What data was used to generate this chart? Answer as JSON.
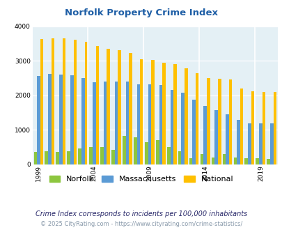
{
  "title": "Norfolk Property Crime Index",
  "years": [
    1999,
    2000,
    2001,
    2002,
    2003,
    2004,
    2005,
    2006,
    2007,
    2008,
    2009,
    2010,
    2011,
    2012,
    2013,
    2014,
    2015,
    2016,
    2017,
    2018,
    2019,
    2020
  ],
  "norfolk": [
    370,
    380,
    370,
    380,
    460,
    510,
    500,
    430,
    820,
    790,
    640,
    700,
    510,
    380,
    190,
    300,
    200,
    300,
    200,
    190,
    190,
    170
  ],
  "massachusetts": [
    2570,
    2630,
    2610,
    2580,
    2500,
    2390,
    2410,
    2400,
    2410,
    2330,
    2330,
    2300,
    2160,
    2070,
    1870,
    1700,
    1570,
    1460,
    1290,
    1200,
    1190,
    1190
  ],
  "national": [
    3640,
    3660,
    3650,
    3620,
    3560,
    3440,
    3360,
    3310,
    3240,
    3040,
    3020,
    2940,
    2900,
    2780,
    2640,
    2510,
    2490,
    2460,
    2200,
    2120,
    2100,
    2100
  ],
  "norfolk_color": "#8dc63f",
  "massachusetts_color": "#5b9bd5",
  "national_color": "#ffc000",
  "bg_color": "#e4f0f5",
  "ylim": [
    0,
    4000
  ],
  "yticks": [
    0,
    1000,
    2000,
    3000,
    4000
  ],
  "xtick_years": [
    1999,
    2004,
    2009,
    2014,
    2019
  ],
  "title_color": "#1f5fa6",
  "subtitle": "Crime Index corresponds to incidents per 100,000 inhabitants",
  "footer": "© 2025 CityRating.com - https://www.cityrating.com/crime-statistics/",
  "subtitle_color": "#2c2c6c",
  "footer_color": "#8899aa"
}
